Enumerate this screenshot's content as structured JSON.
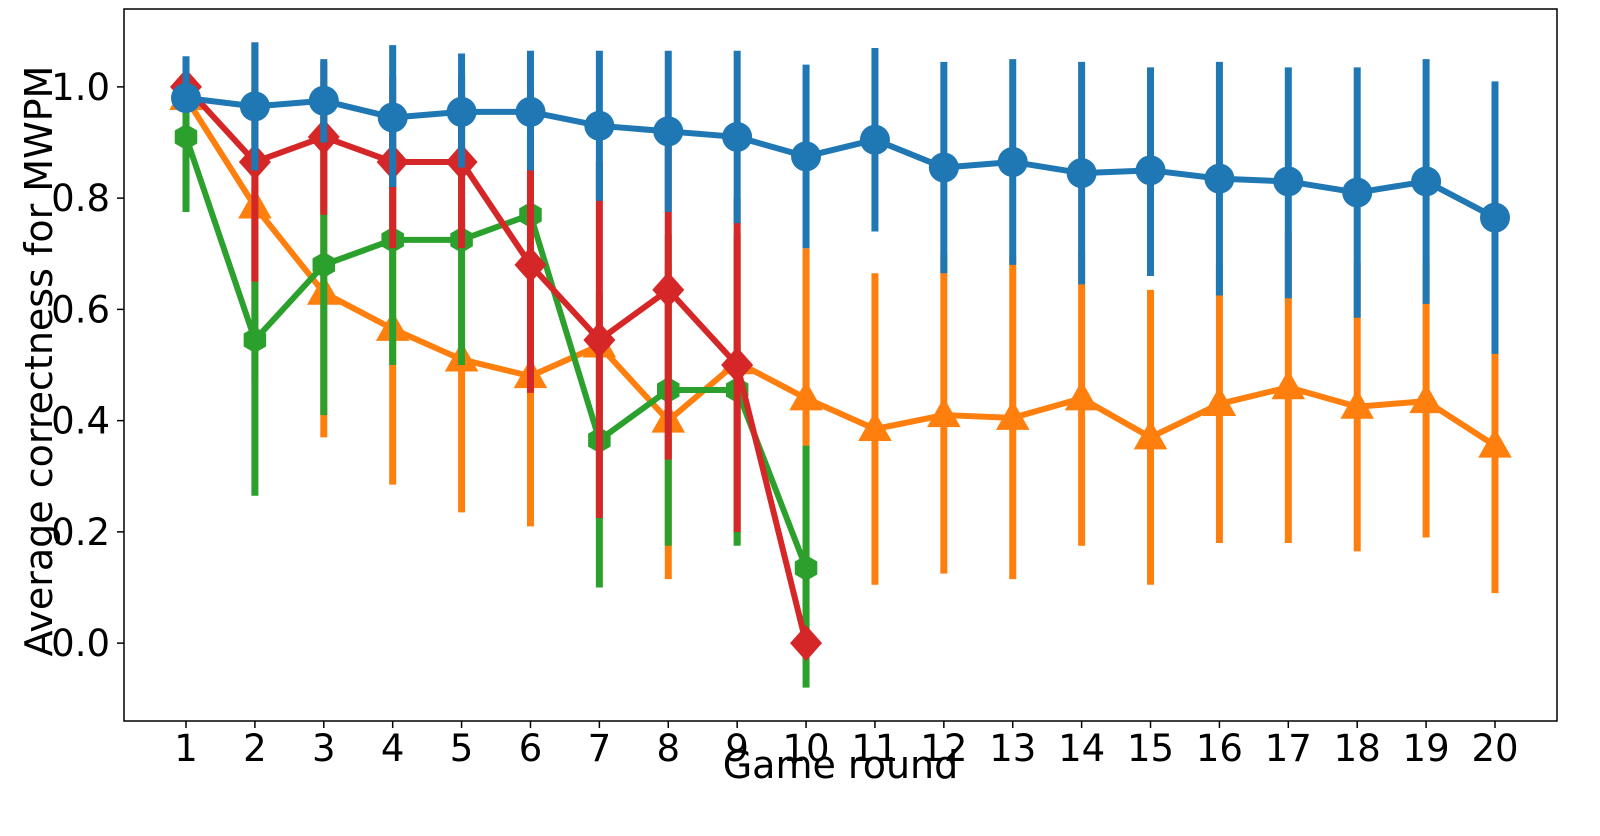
{
  "chart_data": {
    "type": "line",
    "title": "",
    "xlabel": "Game round",
    "ylabel": "Average correctness for MWPM",
    "x": [
      1,
      2,
      3,
      4,
      5,
      6,
      7,
      8,
      9,
      10,
      11,
      12,
      13,
      14,
      15,
      16,
      17,
      18,
      19,
      20
    ],
    "xlim": [
      0.1,
      20.9
    ],
    "ylim": [
      -0.14,
      1.14
    ],
    "yticks": [
      0.0,
      0.2,
      0.4,
      0.6,
      0.8,
      1.0
    ],
    "ytick_labels": [
      "0.0",
      "0.2",
      "0.4",
      "0.6",
      "0.8",
      "1.0"
    ],
    "xtick_labels": [
      "1",
      "2",
      "3",
      "4",
      "5",
      "6",
      "7",
      "8",
      "9",
      "10",
      "11",
      "12",
      "13",
      "14",
      "15",
      "16",
      "17",
      "18",
      "19",
      "20"
    ],
    "grid": false,
    "legend": null,
    "series": [
      {
        "color": "#ff7f0e",
        "marker": "triangle",
        "values": [
          0.98,
          0.785,
          0.63,
          0.565,
          0.51,
          0.48,
          0.535,
          0.4,
          0.505,
          0.44,
          0.385,
          0.41,
          0.405,
          0.44,
          0.37,
          0.43,
          0.46,
          0.425,
          0.435,
          0.355
        ],
        "err_low": [
          0.96,
          0.47,
          0.37,
          0.285,
          0.235,
          0.21,
          0.52,
          0.115,
          0.18,
          0.0,
          0.105,
          0.125,
          0.115,
          0.175,
          0.105,
          0.18,
          0.18,
          0.165,
          0.19,
          0.09
        ],
        "err_high": [
          1.0,
          1.0,
          0.89,
          0.84,
          0.78,
          0.75,
          0.55,
          0.68,
          0.53,
          0.71,
          0.665,
          0.7,
          0.695,
          0.705,
          0.635,
          0.68,
          0.74,
          0.685,
          0.685,
          0.62
        ]
      },
      {
        "color": "#2ca02c",
        "marker": "hexagon",
        "values": [
          0.91,
          0.545,
          0.68,
          0.725,
          0.725,
          0.77,
          0.365,
          0.455,
          0.455,
          0.135,
          null,
          null,
          null,
          null,
          null,
          null,
          null,
          null,
          null,
          null
        ],
        "err_low": [
          0.775,
          0.265,
          0.41,
          0.5,
          0.5,
          0.52,
          0.1,
          0.175,
          0.175,
          -0.08,
          null,
          null,
          null,
          null,
          null,
          null,
          null,
          null,
          null,
          null
        ],
        "err_high": [
          1.045,
          0.82,
          0.95,
          0.95,
          0.95,
          1.0,
          0.63,
          0.735,
          0.735,
          0.355,
          null,
          null,
          null,
          null,
          null,
          null,
          null,
          null,
          null,
          null
        ]
      },
      {
        "color": "#d62728",
        "marker": "diamond",
        "values": [
          1.0,
          0.865,
          0.91,
          0.865,
          0.865,
          0.68,
          0.545,
          0.635,
          0.5,
          0.0,
          null,
          null,
          null,
          null,
          null,
          null,
          null,
          null,
          null,
          null
        ],
        "err_low": [
          1.0,
          0.65,
          0.77,
          0.71,
          0.71,
          0.45,
          0.225,
          0.33,
          0.2,
          0.0,
          null,
          null,
          null,
          null,
          null,
          null,
          null,
          null,
          null,
          null
        ],
        "err_high": [
          1.0,
          1.08,
          1.045,
          1.02,
          1.02,
          0.91,
          0.865,
          0.94,
          0.8,
          0.0,
          null,
          null,
          null,
          null,
          null,
          null,
          null,
          null,
          null,
          null
        ]
      },
      {
        "color": "#1f77b4",
        "marker": "circle",
        "values": [
          0.98,
          0.965,
          0.975,
          0.945,
          0.955,
          0.955,
          0.93,
          0.92,
          0.91,
          0.875,
          0.905,
          0.855,
          0.865,
          0.845,
          0.85,
          0.835,
          0.83,
          0.81,
          0.83,
          0.765
        ],
        "err_low": [
          0.96,
          0.85,
          0.9,
          0.82,
          0.855,
          0.85,
          0.795,
          0.775,
          0.755,
          0.71,
          0.74,
          0.665,
          0.68,
          0.645,
          0.66,
          0.625,
          0.62,
          0.585,
          0.61,
          0.52
        ],
        "err_high": [
          1.055,
          1.08,
          1.05,
          1.075,
          1.06,
          1.065,
          1.065,
          1.065,
          1.065,
          1.04,
          1.07,
          1.045,
          1.05,
          1.045,
          1.035,
          1.045,
          1.035,
          1.035,
          1.05,
          1.01
        ]
      }
    ]
  }
}
